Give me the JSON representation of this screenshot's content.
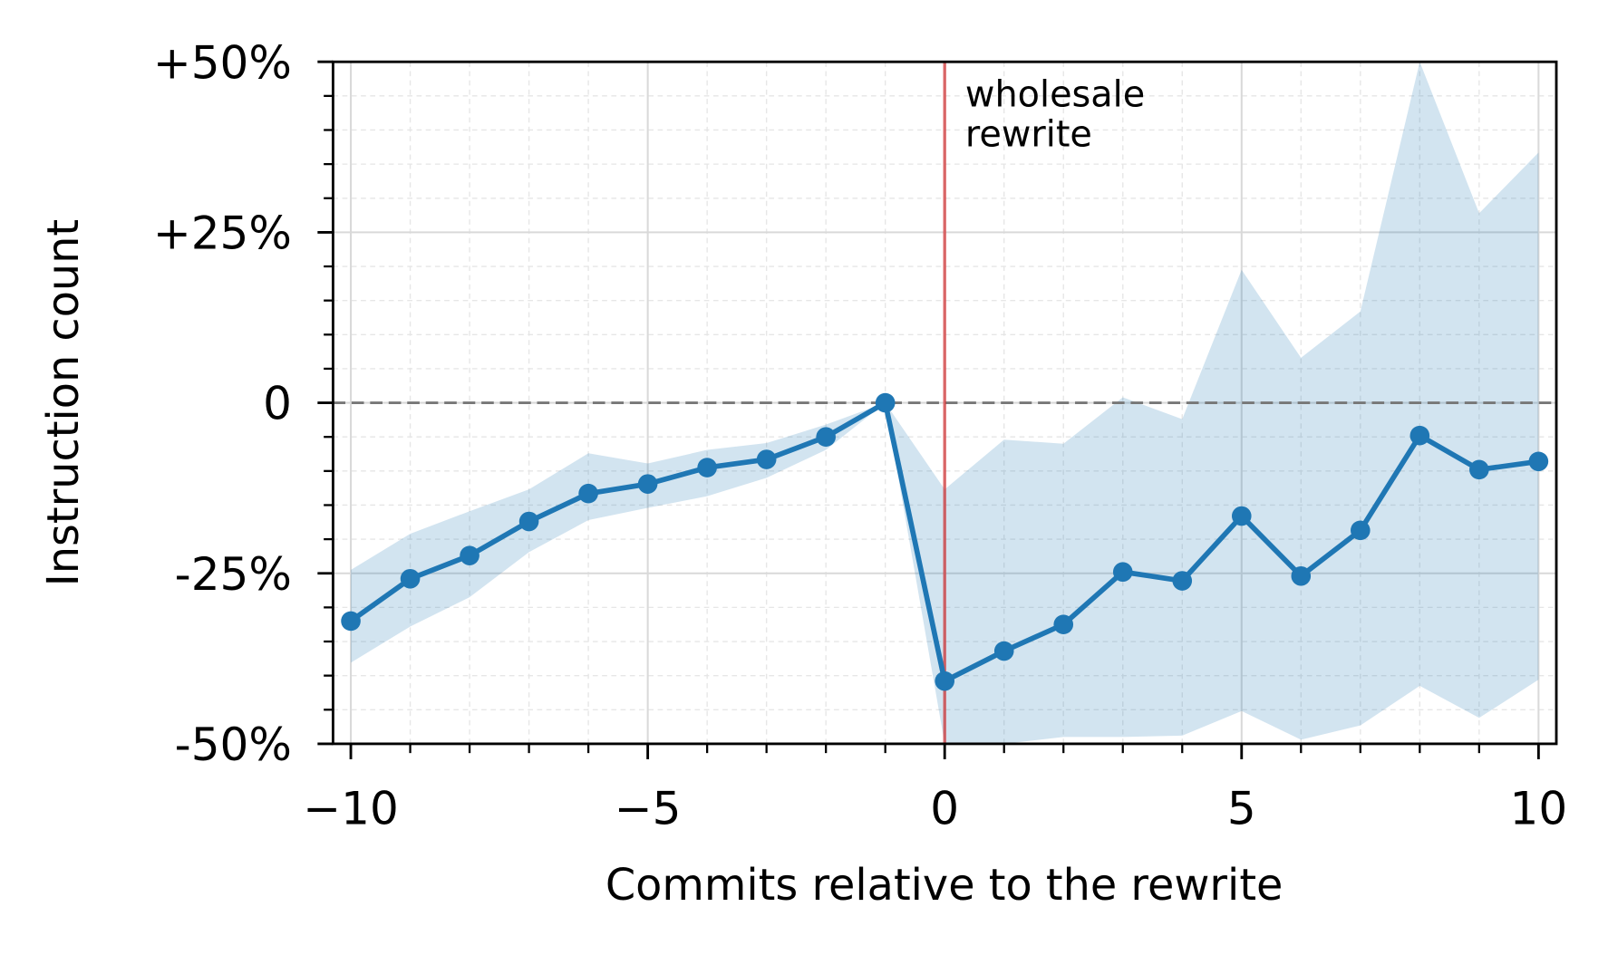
{
  "chart_data": {
    "type": "line",
    "xlabel": "Commits relative to the rewrite",
    "ylabel": "Instruction count",
    "x": [
      -10,
      -9,
      -8,
      -7,
      -6,
      -5,
      -4,
      -3,
      -2,
      -1,
      0,
      1,
      2,
      3,
      4,
      5,
      6,
      7,
      8,
      9,
      10
    ],
    "series": [
      {
        "color": "#1f77b4",
        "values": [
          -32.0,
          -25.8,
          -22.4,
          -17.4,
          -13.3,
          -11.9,
          -9.5,
          -8.3,
          -5.0,
          0,
          -40.8,
          -36.4,
          -32.5,
          -24.8,
          -26.1,
          -16.6,
          -25.4,
          -18.7,
          -4.8,
          -9.8,
          -8.6
        ]
      }
    ],
    "band": {
      "color": "#1f77b4",
      "upper": [
        -24.5,
        -19.2,
        -15.9,
        -12.7,
        -7.4,
        -8.9,
        -6.9,
        -5.9,
        -3.2,
        0,
        -12.7,
        -5.4,
        -6.0,
        0.8,
        -2.4,
        19.5,
        6.6,
        13.4,
        50,
        27.8,
        36.7
      ],
      "lower": [
        -38.1,
        -32.8,
        -28.5,
        -21.9,
        -17.2,
        -15.4,
        -13.7,
        -11.0,
        -6.9,
        0,
        -50,
        -50,
        -49,
        -49,
        -48.8,
        -45.2,
        -49.4,
        -47.3,
        -41.5,
        -46.2,
        -40.6
      ]
    },
    "xlim": [
      -10.3,
      10.3
    ],
    "ylim": [
      -50,
      50
    ],
    "xticks": [
      {
        "value": -10,
        "label": "−10"
      },
      {
        "value": -5,
        "label": "−5"
      },
      0,
      5,
      10
    ],
    "yticks": [
      {
        "value": -50,
        "label": "-50%"
      },
      {
        "value": -25,
        "label": "-25%"
      },
      0,
      {
        "value": 25,
        "label": "+25%"
      },
      {
        "value": 50,
        "label": "+50%"
      }
    ],
    "xminorticks": [
      -10,
      -9,
      -8,
      -7,
      -6,
      -5,
      -4,
      -3,
      -2,
      -1,
      0,
      1,
      2,
      3,
      4,
      5,
      6,
      7,
      8,
      9,
      10
    ],
    "yminorticks": [
      -45,
      -40,
      -35,
      -30,
      -20,
      -15,
      -10,
      -5,
      5,
      10,
      15,
      20,
      30,
      35,
      40,
      45
    ],
    "grid": true,
    "hline": 0,
    "vline": {
      "x": 0,
      "color": "#d62728",
      "text": [
        "wholesale",
        "rewrite"
      ]
    }
  }
}
